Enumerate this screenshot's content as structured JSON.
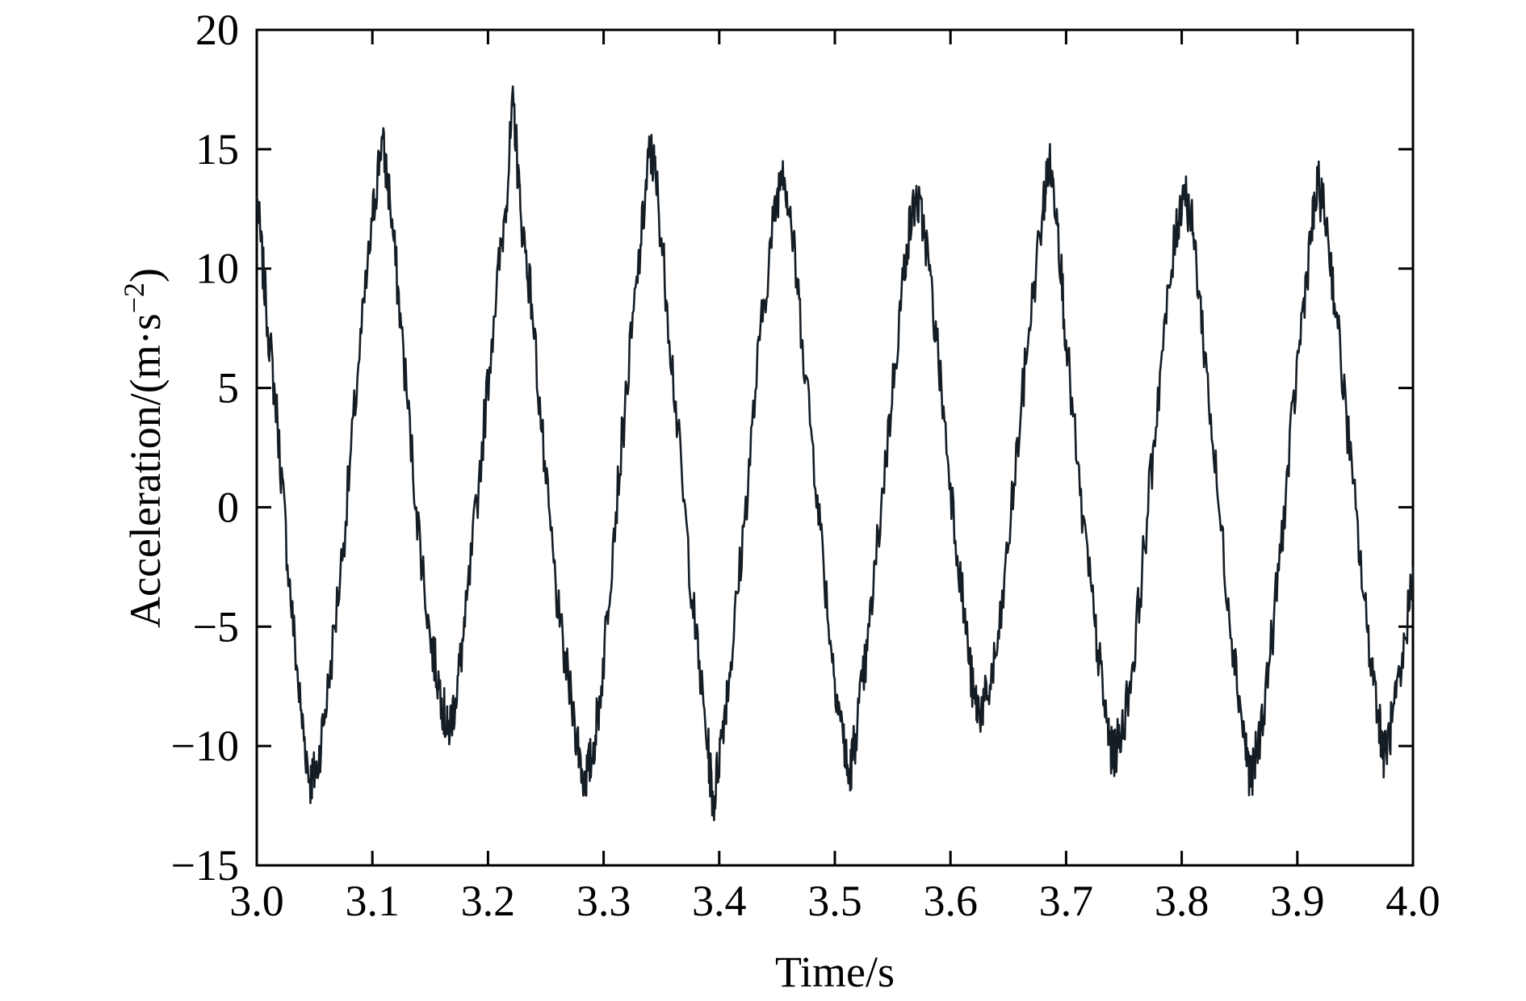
{
  "chart_data": {
    "type": "line",
    "xlabel": "Time/s",
    "ylabel_main": "Acceleration/(m·s",
    "ylabel_sup": "−2",
    "ylabel_close": ")",
    "xlim": [
      3.0,
      4.0
    ],
    "ylim": [
      -15,
      20
    ],
    "xticks": [
      3.0,
      3.1,
      3.2,
      3.3,
      3.4,
      3.5,
      3.6,
      3.7,
      3.8,
      3.9,
      4.0
    ],
    "xtick_labels": [
      "3.0",
      "3.1",
      "3.2",
      "3.3",
      "3.4",
      "3.5",
      "3.6",
      "3.7",
      "3.8",
      "3.9",
      "4.0"
    ],
    "yticks": [
      20,
      15,
      10,
      5,
      0,
      -5,
      -10,
      -15
    ],
    "ytick_labels": [
      "20",
      "15",
      "10",
      "5",
      "0",
      "−5",
      "−10",
      "−15"
    ],
    "grid": false,
    "series": [
      {
        "color": "#141c24",
        "x": [
          3.0,
          3.008,
          3.018,
          3.028,
          3.038,
          3.046,
          3.052,
          3.062,
          3.075,
          3.088,
          3.1,
          3.108,
          3.115,
          3.125,
          3.138,
          3.15,
          3.16,
          3.165,
          3.172,
          3.18,
          3.192,
          3.205,
          3.215,
          3.222,
          3.228,
          3.238,
          3.25,
          3.262,
          3.275,
          3.283,
          3.29,
          3.298,
          3.308,
          3.32,
          3.332,
          3.34,
          3.345,
          3.355,
          3.368,
          3.38,
          3.39,
          3.395,
          3.402,
          3.41,
          3.422,
          3.435,
          3.447,
          3.455,
          3.462,
          3.472,
          3.485,
          3.497,
          3.507,
          3.512,
          3.518,
          3.528,
          3.54,
          3.552,
          3.562,
          3.57,
          3.578,
          3.588,
          3.6,
          3.612,
          3.62,
          3.625,
          3.632,
          3.642,
          3.655,
          3.668,
          3.68,
          3.685,
          3.692,
          3.7,
          3.712,
          3.725,
          3.735,
          3.74,
          3.748,
          3.758,
          3.77,
          3.782,
          3.795,
          3.802,
          3.81,
          3.82,
          3.832,
          3.845,
          3.855,
          3.86,
          3.868,
          3.878,
          3.89,
          3.902,
          3.912,
          3.918,
          3.925,
          3.935,
          3.948,
          3.96,
          3.97,
          3.975,
          3.982,
          3.99,
          4.0
        ],
        "y": [
          13.0,
          8.5,
          3.5,
          -3.0,
          -8.5,
          -11.5,
          -11.0,
          -7.5,
          -1.5,
          6.0,
          12.0,
          15.5,
          13.0,
          7.5,
          0.0,
          -5.5,
          -8.0,
          -9.5,
          -8.0,
          -5.0,
          1.0,
          8.0,
          12.5,
          17.0,
          12.5,
          8.5,
          1.0,
          -5.0,
          -9.0,
          -11.5,
          -10.5,
          -7.5,
          -1.5,
          5.0,
          11.0,
          15.0,
          14.0,
          8.5,
          1.0,
          -5.5,
          -10.0,
          -12.5,
          -9.5,
          -6.5,
          -0.5,
          7.0,
          12.0,
          14.5,
          12.0,
          7.0,
          0.5,
          -6.0,
          -9.5,
          -11.5,
          -9.5,
          -6.0,
          0.0,
          6.0,
          11.0,
          13.0,
          11.5,
          7.0,
          1.0,
          -4.5,
          -8.0,
          -8.5,
          -8.0,
          -5.5,
          1.0,
          7.5,
          12.5,
          14.5,
          12.5,
          7.0,
          0.5,
          -5.0,
          -9.0,
          -10.5,
          -9.5,
          -6.5,
          -0.5,
          6.0,
          11.5,
          13.5,
          11.5,
          6.5,
          0.0,
          -6.0,
          -10.0,
          -11.5,
          -9.5,
          -5.5,
          0.5,
          7.0,
          11.5,
          13.5,
          12.0,
          7.5,
          1.0,
          -5.0,
          -8.5,
          -10.5,
          -9.0,
          -7.0,
          -2.5
        ]
      }
    ]
  }
}
